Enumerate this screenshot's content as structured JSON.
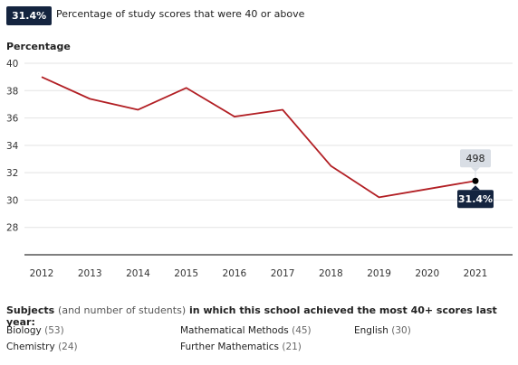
{
  "headline": {
    "badge": "31.4%",
    "text": "Percentage of study scores that were 40 or above"
  },
  "colors": {
    "line": "#b21f24",
    "badge_bg": "#14243f",
    "tooltip_bg": "#d9dee5",
    "grid": "#e3e3e3",
    "axis": "#333333"
  },
  "chart_data": {
    "type": "line",
    "title": "",
    "xlabel": "",
    "ylabel": "Percentage",
    "x": [
      2012,
      2013,
      2014,
      2015,
      2016,
      2017,
      2018,
      2019,
      2020,
      2021
    ],
    "series": [
      {
        "values": [
          39.0,
          37.4,
          36.6,
          38.2,
          36.1,
          36.6,
          32.5,
          30.2,
          30.8,
          31.4
        ]
      }
    ],
    "ylim": [
      26,
      40
    ],
    "yticks": [
      28,
      30,
      32,
      34,
      36,
      38,
      40
    ],
    "grid": true,
    "highlight": {
      "x": 2021,
      "value_label": "31.4%",
      "count_label": "498"
    }
  },
  "subjects": {
    "title_bold": "Subjects",
    "title_paren": "(and number of students)",
    "title_rest": "in which this school achieved the most 40+ scores last year:",
    "items": [
      {
        "name": "Biology",
        "count": "(53)"
      },
      {
        "name": "Mathematical Methods",
        "count": "(45)"
      },
      {
        "name": "English",
        "count": "(30)"
      },
      {
        "name": "Chemistry",
        "count": "(24)"
      },
      {
        "name": "Further Mathematics",
        "count": "(21)"
      }
    ]
  }
}
